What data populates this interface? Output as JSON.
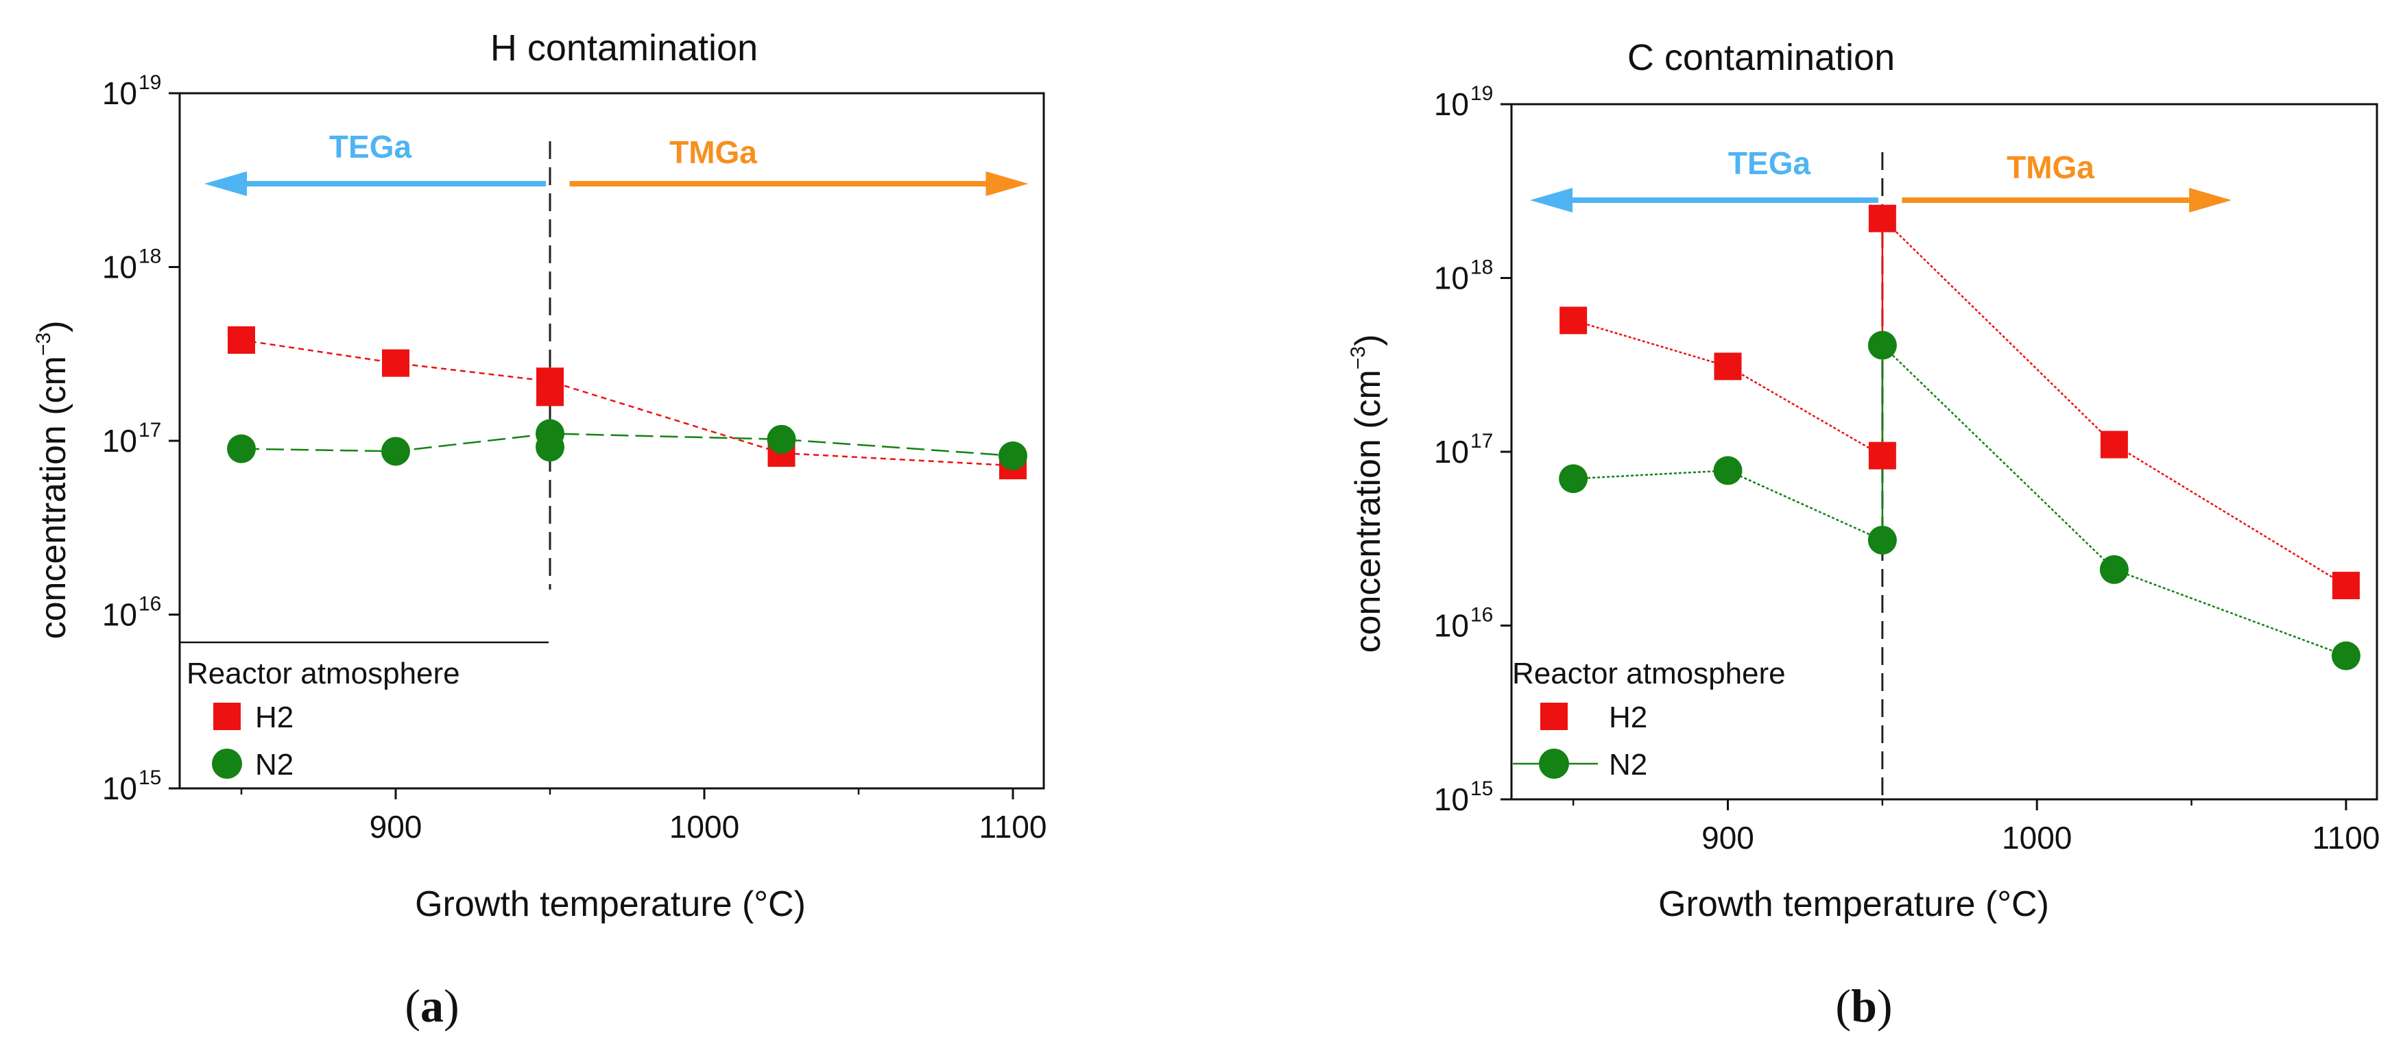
{
  "colors": {
    "h2": "#ee1111",
    "n2": "#148214",
    "tega": "#4fb4f2",
    "tmga": "#f7901e",
    "axis": "#111111"
  },
  "chart_data": [
    {
      "type": "scatter",
      "title": "H contamination",
      "panel_label_open": "(",
      "panel_label": "a",
      "panel_label_close": ")",
      "xlabel": "Growth temperature (°C)",
      "ylabel": "concentration (cm",
      "ylabel_sup": "−3",
      "ylabel_close": ")",
      "yscale": "log",
      "xlim": [
        830,
        1110
      ],
      "ylim_exp": [
        15,
        19
      ],
      "xticks": [
        900,
        1000,
        1100
      ],
      "yticks": [
        {
          "base": "10",
          "exp": "15"
        },
        {
          "base": "10",
          "exp": "16"
        },
        {
          "base": "10",
          "exp": "17"
        },
        {
          "base": "10",
          "exp": "18"
        },
        {
          "base": "10",
          "exp": "19"
        }
      ],
      "divider_x": 950,
      "regions": [
        {
          "label": "TEGa",
          "direction": "left",
          "from": 950,
          "to": 838
        },
        {
          "label": "TMGa",
          "direction": "right",
          "from": 955,
          "to": 1105
        }
      ],
      "legend": {
        "title": "Reactor atmosphere",
        "entries": [
          "H2",
          "N2"
        ],
        "placement": "bottom-left"
      },
      "series": [
        {
          "name": "H2",
          "marker": "square",
          "points": [
            [
              850,
              3.8e+17
            ],
            [
              900,
              2.8e+17
            ],
            [
              950,
              2.2e+17
            ],
            [
              950,
              1.9e+17
            ],
            [
              1025,
              8.5e+16
            ],
            [
              1100,
              7.2e+16
            ]
          ]
        },
        {
          "name": "N2",
          "marker": "circle",
          "points": [
            [
              850,
              9e+16
            ],
            [
              900,
              8.7e+16
            ],
            [
              950,
              1.1e+17
            ],
            [
              950,
              9.2e+16
            ],
            [
              1025,
              1.02e+17
            ],
            [
              1100,
              8.2e+16
            ]
          ]
        }
      ]
    },
    {
      "type": "scatter",
      "title": "C contamination",
      "panel_label_open": "(",
      "panel_label": "b",
      "panel_label_close": ")",
      "xlabel": "Growth temperature (°C)",
      "ylabel": "concentration (cm",
      "ylabel_sup": "−3",
      "ylabel_close": ")",
      "yscale": "log",
      "xlim": [
        830,
        1110
      ],
      "ylim_exp": [
        15,
        19
      ],
      "xticks": [
        900,
        1000,
        1100
      ],
      "yticks": [
        {
          "base": "10",
          "exp": "15"
        },
        {
          "base": "10",
          "exp": "16"
        },
        {
          "base": "10",
          "exp": "17"
        },
        {
          "base": "10",
          "exp": "18"
        },
        {
          "base": "10",
          "exp": "19"
        }
      ],
      "divider_x": 950,
      "regions": [
        {
          "label": "TEGa",
          "direction": "left",
          "from": 950,
          "to": 836
        },
        {
          "label": "TMGa",
          "direction": "right",
          "from": 955,
          "to": 1063
        }
      ],
      "legend": {
        "title": "Reactor atmosphere",
        "entries": [
          "H2",
          "N2"
        ],
        "placement": "bottom-left"
      },
      "series": [
        {
          "name": "H2",
          "marker": "square",
          "points": [
            [
              850,
              5.7e+17
            ],
            [
              900,
              3.1e+17
            ],
            [
              950,
              9.5e+16
            ],
            [
              950,
              2.2e+18
            ],
            [
              1025,
              1.1e+17
            ],
            [
              1100,
              1.7e+16
            ]
          ]
        },
        {
          "name": "N2",
          "marker": "circle",
          "points": [
            [
              850,
              7e+16
            ],
            [
              900,
              7.8e+16
            ],
            [
              950,
              3.1e+16
            ],
            [
              950,
              4.1e+17
            ],
            [
              1025,
              2.1e+16
            ],
            [
              1100,
              6700000000000000.0
            ]
          ]
        }
      ]
    }
  ]
}
